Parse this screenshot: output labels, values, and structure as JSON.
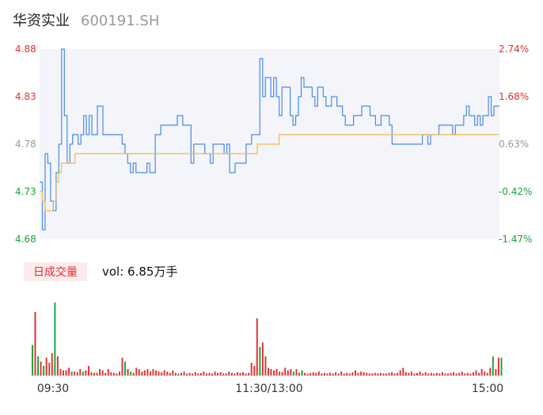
{
  "header": {
    "stock_name": "华资实业",
    "stock_code": "600191.SH"
  },
  "volume_panel": {
    "badge": "日成交量",
    "vol_label": "vol: 6.85万手"
  },
  "colors": {
    "price_line": "#4a8ae8",
    "avg_line": "#f5b94a",
    "up": "#e03131",
    "down": "#1aa13a",
    "neutral": "#999999",
    "area": "#f3f5fb"
  },
  "chart_data": [
    {
      "type": "line",
      "title": "",
      "x_tick_labels": [
        "09:30",
        "11:30/13:00",
        "15:00"
      ],
      "ylim": [
        4.68,
        4.88
      ],
      "y_ticks": [
        {
          "value": 4.88,
          "label": "4.88",
          "pct_label": "2.74%",
          "color": "up"
        },
        {
          "value": 4.83,
          "label": "4.83",
          "pct_label": "1.68%",
          "color": "up"
        },
        {
          "value": 4.78,
          "label": "4.78",
          "pct_label": "0.63%",
          "color": "neutral"
        },
        {
          "value": 4.73,
          "label": "4.73",
          "pct_label": "-0.42%",
          "color": "down"
        },
        {
          "value": 4.68,
          "label": "4.68",
          "pct_label": "-1.47%",
          "color": "down"
        }
      ],
      "series": [
        {
          "values": [
            4.74,
            4.69,
            4.77,
            4.76,
            4.72,
            4.71,
            4.75,
            4.78,
            4.88,
            4.81,
            4.76,
            4.78,
            4.79,
            4.79,
            4.78,
            4.79,
            4.81,
            4.79,
            4.81,
            4.79,
            4.79,
            4.82,
            4.82,
            4.79,
            4.79,
            4.79,
            4.79,
            4.79,
            4.79,
            4.79,
            4.78,
            4.77,
            4.76,
            4.75,
            4.76,
            4.75,
            4.75,
            4.75,
            4.75,
            4.76,
            4.75,
            4.75,
            4.79,
            4.79,
            4.8,
            4.8,
            4.8,
            4.8,
            4.8,
            4.8,
            4.81,
            4.81,
            4.8,
            4.8,
            4.8,
            4.76,
            4.78,
            4.78,
            4.78,
            4.78,
            4.77,
            4.77,
            4.76,
            4.78,
            4.78,
            4.78,
            4.78,
            4.77,
            4.78,
            4.75,
            4.75,
            4.76,
            4.76,
            4.76,
            4.76,
            4.78,
            4.78,
            4.79,
            4.79,
            4.79,
            4.87,
            4.83,
            4.85,
            4.85,
            4.83,
            4.85,
            4.83,
            4.81,
            4.84,
            4.84,
            4.84,
            4.81,
            4.8,
            4.81,
            4.83,
            4.85,
            4.84,
            4.84,
            4.84,
            4.83,
            4.82,
            4.84,
            4.84,
            4.83,
            4.82,
            4.82,
            4.83,
            4.83,
            4.82,
            4.82,
            4.81,
            4.8,
            4.8,
            4.8,
            4.81,
            4.81,
            4.81,
            4.82,
            4.82,
            4.82,
            4.81,
            4.81,
            4.8,
            4.8,
            4.81,
            4.81,
            4.81,
            4.8,
            4.78,
            4.78,
            4.78,
            4.78,
            4.78,
            4.78,
            4.78,
            4.78,
            4.78,
            4.78,
            4.78,
            4.79,
            4.79,
            4.78,
            4.79,
            4.79,
            4.79,
            4.8,
            4.8,
            4.8,
            4.8,
            4.8,
            4.79,
            4.8,
            4.8,
            4.8,
            4.81,
            4.82,
            4.81,
            4.81,
            4.8,
            4.81,
            4.8,
            4.81,
            4.81,
            4.83,
            4.81,
            4.82,
            4.82,
            4.82
          ],
          "color": "price_line"
        },
        {
          "values": [
            4.73,
            4.72,
            4.71,
            4.71,
            4.71,
            4.72,
            4.74,
            4.75,
            4.76,
            4.76,
            4.76,
            4.76,
            4.76,
            4.77,
            4.77,
            4.77,
            4.77,
            4.77,
            4.77,
            4.77,
            4.77,
            4.77,
            4.77,
            4.77,
            4.77,
            4.77,
            4.77,
            4.77,
            4.77,
            4.77,
            4.77,
            4.77,
            4.77,
            4.77,
            4.77,
            4.77,
            4.77,
            4.77,
            4.77,
            4.77,
            4.77,
            4.77,
            4.77,
            4.77,
            4.77,
            4.77,
            4.77,
            4.77,
            4.77,
            4.77,
            4.77,
            4.77,
            4.77,
            4.77,
            4.77,
            4.77,
            4.77,
            4.77,
            4.77,
            4.77,
            4.77,
            4.77,
            4.77,
            4.77,
            4.77,
            4.77,
            4.77,
            4.77,
            4.77,
            4.77,
            4.77,
            4.77,
            4.77,
            4.77,
            4.77,
            4.77,
            4.77,
            4.77,
            4.77,
            4.77,
            4.78,
            4.78,
            4.78,
            4.78,
            4.78,
            4.78,
            4.78,
            4.78,
            4.79,
            4.79,
            4.79,
            4.79,
            4.79,
            4.79,
            4.79,
            4.79,
            4.79,
            4.79,
            4.79,
            4.79,
            4.79,
            4.79,
            4.79,
            4.79,
            4.79,
            4.79,
            4.79,
            4.79,
            4.79,
            4.79,
            4.79,
            4.79,
            4.79,
            4.79,
            4.79,
            4.79,
            4.79,
            4.79,
            4.79,
            4.79,
            4.79,
            4.79,
            4.79,
            4.79,
            4.79,
            4.79,
            4.79,
            4.79,
            4.79,
            4.79,
            4.79,
            4.79,
            4.79,
            4.79,
            4.79,
            4.79,
            4.79,
            4.79,
            4.79,
            4.79,
            4.79,
            4.79,
            4.79,
            4.79,
            4.79,
            4.79,
            4.79,
            4.79,
            4.79,
            4.79,
            4.79,
            4.79,
            4.79,
            4.79,
            4.79,
            4.79,
            4.79,
            4.79,
            4.79,
            4.79,
            4.79,
            4.79,
            4.79,
            4.79,
            4.79,
            4.79,
            4.79,
            4.79,
            4.79,
            4.79
          ],
          "color": "avg_line"
        }
      ]
    },
    {
      "type": "bar",
      "title": "",
      "bars": [
        [
          0.48,
          "down"
        ],
        [
          1.0,
          "up"
        ],
        [
          0.3,
          "down"
        ],
        [
          0.22,
          "up"
        ],
        [
          0.15,
          "down"
        ],
        [
          0.28,
          "up"
        ],
        [
          0.2,
          "up"
        ],
        [
          0.35,
          "up"
        ],
        [
          1.15,
          "down"
        ],
        [
          0.3,
          "up"
        ],
        [
          0.1,
          "up"
        ],
        [
          0.08,
          "up"
        ],
        [
          0.08,
          "up"
        ],
        [
          0.12,
          "up"
        ],
        [
          0.06,
          "down"
        ],
        [
          0.06,
          "up"
        ],
        [
          0.05,
          "up"
        ],
        [
          0.1,
          "up"
        ],
        [
          0.06,
          "down"
        ],
        [
          0.08,
          "up"
        ],
        [
          0.15,
          "up"
        ],
        [
          0.05,
          "up"
        ],
        [
          0.04,
          "up"
        ],
        [
          0.04,
          "up"
        ],
        [
          0.1,
          "up"
        ],
        [
          0.08,
          "up"
        ],
        [
          0.04,
          "up"
        ],
        [
          0.1,
          "up"
        ],
        [
          0.05,
          "up"
        ],
        [
          0.04,
          "up"
        ],
        [
          0.03,
          "up"
        ],
        [
          0.06,
          "up"
        ],
        [
          0.28,
          "up"
        ],
        [
          0.22,
          "down"
        ],
        [
          0.1,
          "up"
        ],
        [
          0.06,
          "down"
        ],
        [
          0.04,
          "up"
        ],
        [
          0.12,
          "up"
        ],
        [
          0.1,
          "up"
        ],
        [
          0.06,
          "up"
        ],
        [
          0.08,
          "up"
        ],
        [
          0.1,
          "up"
        ],
        [
          0.06,
          "up"
        ],
        [
          0.1,
          "up"
        ],
        [
          0.08,
          "up"
        ],
        [
          0.06,
          "up"
        ],
        [
          0.05,
          "up"
        ],
        [
          0.08,
          "up"
        ],
        [
          0.06,
          "up"
        ],
        [
          0.04,
          "up"
        ],
        [
          0.08,
          "up"
        ],
        [
          0.04,
          "up"
        ],
        [
          0.03,
          "down"
        ],
        [
          0.04,
          "up"
        ],
        [
          0.06,
          "up"
        ],
        [
          0.03,
          "up"
        ],
        [
          0.04,
          "up"
        ],
        [
          0.03,
          "up"
        ],
        [
          0.05,
          "up"
        ],
        [
          0.03,
          "up"
        ],
        [
          0.04,
          "up"
        ],
        [
          0.06,
          "up"
        ],
        [
          0.03,
          "up"
        ],
        [
          0.04,
          "up"
        ],
        [
          0.03,
          "up"
        ],
        [
          0.06,
          "up"
        ],
        [
          0.04,
          "up"
        ],
        [
          0.05,
          "up"
        ],
        [
          0.03,
          "up"
        ],
        [
          0.03,
          "up"
        ],
        [
          0.06,
          "up"
        ],
        [
          0.04,
          "up"
        ],
        [
          0.03,
          "up"
        ],
        [
          0.05,
          "up"
        ],
        [
          0.04,
          "up"
        ],
        [
          0.05,
          "up"
        ],
        [
          0.03,
          "up"
        ],
        [
          0.04,
          "up"
        ],
        [
          0.2,
          "up"
        ],
        [
          0.15,
          "up"
        ],
        [
          0.9,
          "up"
        ],
        [
          0.45,
          "down"
        ],
        [
          0.52,
          "up"
        ],
        [
          0.3,
          "up"
        ],
        [
          0.12,
          "up"
        ],
        [
          0.1,
          "up"
        ],
        [
          0.08,
          "up"
        ],
        [
          0.1,
          "up"
        ],
        [
          0.06,
          "up"
        ],
        [
          0.05,
          "up"
        ],
        [
          0.12,
          "up"
        ],
        [
          0.08,
          "up"
        ],
        [
          0.1,
          "up"
        ],
        [
          0.06,
          "down"
        ],
        [
          0.1,
          "up"
        ],
        [
          0.04,
          "up"
        ],
        [
          0.08,
          "down"
        ],
        [
          0.04,
          "up"
        ],
        [
          0.03,
          "up"
        ],
        [
          0.04,
          "up"
        ],
        [
          0.05,
          "up"
        ],
        [
          0.04,
          "up"
        ],
        [
          0.06,
          "up"
        ],
        [
          0.03,
          "up"
        ],
        [
          0.04,
          "up"
        ],
        [
          0.03,
          "up"
        ],
        [
          0.04,
          "up"
        ],
        [
          0.03,
          "up"
        ],
        [
          0.05,
          "down"
        ],
        [
          0.03,
          "up"
        ],
        [
          0.06,
          "up"
        ],
        [
          0.03,
          "up"
        ],
        [
          0.04,
          "up"
        ],
        [
          0.03,
          "up"
        ],
        [
          0.05,
          "up"
        ],
        [
          0.08,
          "up"
        ],
        [
          0.04,
          "up"
        ],
        [
          0.06,
          "up"
        ],
        [
          0.05,
          "up"
        ],
        [
          0.04,
          "up"
        ],
        [
          0.03,
          "up"
        ],
        [
          0.03,
          "up"
        ],
        [
          0.04,
          "up"
        ],
        [
          0.03,
          "up"
        ],
        [
          0.04,
          "up"
        ],
        [
          0.03,
          "up"
        ],
        [
          0.03,
          "up"
        ],
        [
          0.04,
          "up"
        ],
        [
          0.05,
          "up"
        ],
        [
          0.03,
          "up"
        ],
        [
          0.04,
          "up"
        ],
        [
          0.08,
          "up"
        ],
        [
          0.12,
          "up"
        ],
        [
          0.05,
          "up"
        ],
        [
          0.04,
          "up"
        ],
        [
          0.06,
          "up"
        ],
        [
          0.03,
          "up"
        ],
        [
          0.04,
          "up"
        ],
        [
          0.06,
          "up"
        ],
        [
          0.03,
          "up"
        ],
        [
          0.05,
          "up"
        ],
        [
          0.03,
          "up"
        ],
        [
          0.04,
          "up"
        ],
        [
          0.03,
          "up"
        ],
        [
          0.04,
          "up"
        ],
        [
          0.03,
          "up"
        ],
        [
          0.05,
          "up"
        ],
        [
          0.03,
          "up"
        ],
        [
          0.03,
          "up"
        ],
        [
          0.04,
          "up"
        ],
        [
          0.05,
          "up"
        ],
        [
          0.03,
          "up"
        ],
        [
          0.04,
          "up"
        ],
        [
          0.06,
          "up"
        ],
        [
          0.03,
          "up"
        ],
        [
          0.04,
          "up"
        ],
        [
          0.03,
          "up"
        ],
        [
          0.05,
          "up"
        ],
        [
          0.08,
          "up"
        ],
        [
          0.04,
          "up"
        ],
        [
          0.1,
          "up"
        ],
        [
          0.06,
          "up"
        ],
        [
          0.04,
          "up"
        ],
        [
          0.12,
          "up"
        ],
        [
          0.3,
          "down"
        ],
        [
          0.1,
          "up"
        ],
        [
          0.28,
          "up"
        ],
        [
          0.28,
          "down"
        ]
      ]
    }
  ]
}
